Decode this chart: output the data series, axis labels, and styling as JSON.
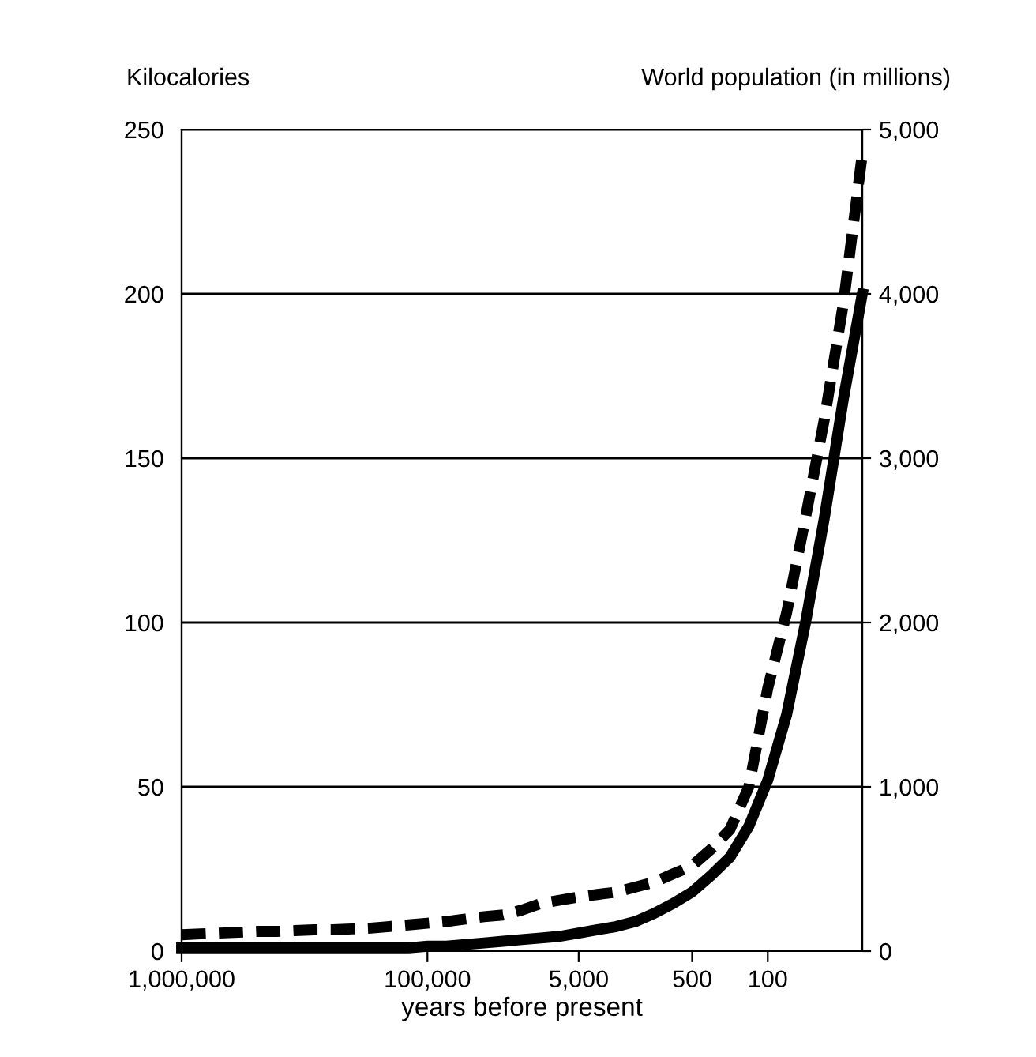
{
  "chart_data": {
    "type": "line",
    "xlabel": "years before present",
    "ylabel": "Kilocalories",
    "y2label": "World population (in millions)",
    "categories": [
      "1,000,000",
      null,
      null,
      null,
      null,
      null,
      null,
      null,
      null,
      null,
      null,
      null,
      null,
      "100,000",
      null,
      null,
      null,
      null,
      null,
      null,
      null,
      "5,000",
      null,
      null,
      null,
      null,
      null,
      "500",
      null,
      null,
      null,
      "100",
      null,
      null,
      null,
      null,
      null
    ],
    "series": [
      {
        "color": "#000000",
        "line_style": "solid",
        "values": [
          1,
          1,
          1,
          1,
          1,
          1,
          1,
          1,
          1,
          1,
          1,
          1,
          1,
          1.5,
          1.5,
          2,
          2.5,
          3,
          3.5,
          4,
          4.5,
          5.5,
          6.5,
          7.5,
          9,
          11.5,
          14.5,
          18,
          23,
          28.6,
          38,
          52,
          72,
          100,
          132,
          168,
          200
        ]
      },
      {
        "color": "#000000",
        "line_style": "dashed",
        "axis": "y2",
        "values": [
          100,
          105,
          110,
          115,
          120,
          120,
          125,
          130,
          130,
          135,
          140,
          150,
          160,
          170,
          180,
          195,
          210,
          220,
          250,
          290,
          310,
          330,
          345,
          360,
          390,
          420,
          470,
          520,
          620,
          740,
          1000,
          1600,
          2060,
          2640,
          3240,
          3940,
          4850
        ]
      }
    ],
    "ylim": [
      0,
      250
    ],
    "yticks": [
      0,
      50,
      100,
      150,
      200,
      250
    ],
    "y2lim": [
      0,
      5000
    ],
    "y2ticks": [
      0,
      {
        "value": 1000,
        "label": "1,000"
      },
      {
        "value": 2000,
        "label": "2,000"
      },
      {
        "value": 3000,
        "label": "3,000"
      },
      {
        "value": 4000,
        "label": "4,000"
      },
      {
        "value": 5000,
        "label": "5,000"
      }
    ],
    "grid": "y",
    "legend": false
  }
}
